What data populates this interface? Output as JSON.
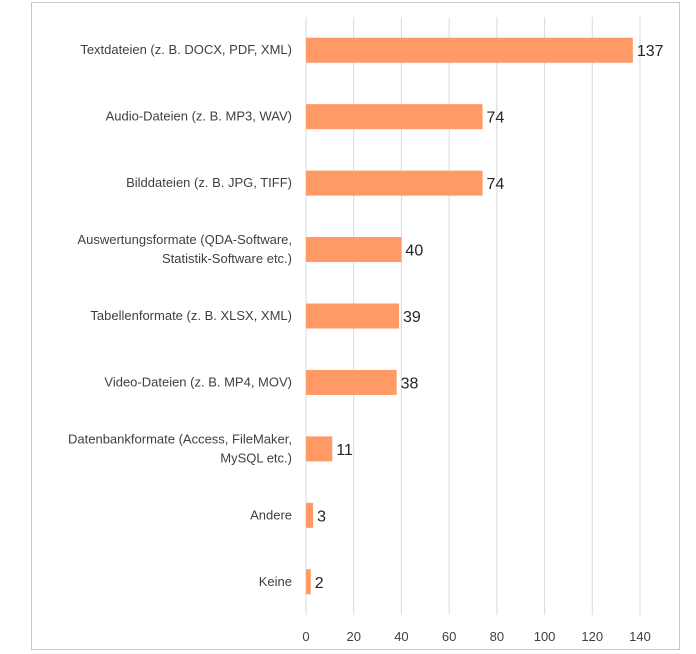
{
  "chart_data": {
    "type": "bar",
    "orientation": "horizontal",
    "categories": [
      [
        "Textdateien (z. B. DOCX, PDF, XML)"
      ],
      [
        "Audio-Dateien (z. B. MP3, WAV)"
      ],
      [
        "Bilddateien (z. B. JPG, TIFF)"
      ],
      [
        "Auswertungsformate (QDA-Software,",
        "Statistik-Software etc.)"
      ],
      [
        "Tabellenformate (z. B. XLSX, XML)"
      ],
      [
        "Video-Dateien (z. B. MP4, MOV)"
      ],
      [
        "Datenbankformate (Access, FileMaker,",
        "MySQL etc.)"
      ],
      [
        "Andere"
      ],
      [
        "Keine"
      ]
    ],
    "values": [
      137,
      74,
      74,
      40,
      39,
      38,
      11,
      3,
      2
    ],
    "xlim": [
      0,
      140
    ],
    "xticks": [
      0,
      20,
      40,
      60,
      80,
      100,
      120,
      140
    ],
    "grid": true,
    "bar_color": "#ff9966",
    "grid_color": "#d9d9d9",
    "title": "",
    "xlabel": "",
    "ylabel": ""
  }
}
